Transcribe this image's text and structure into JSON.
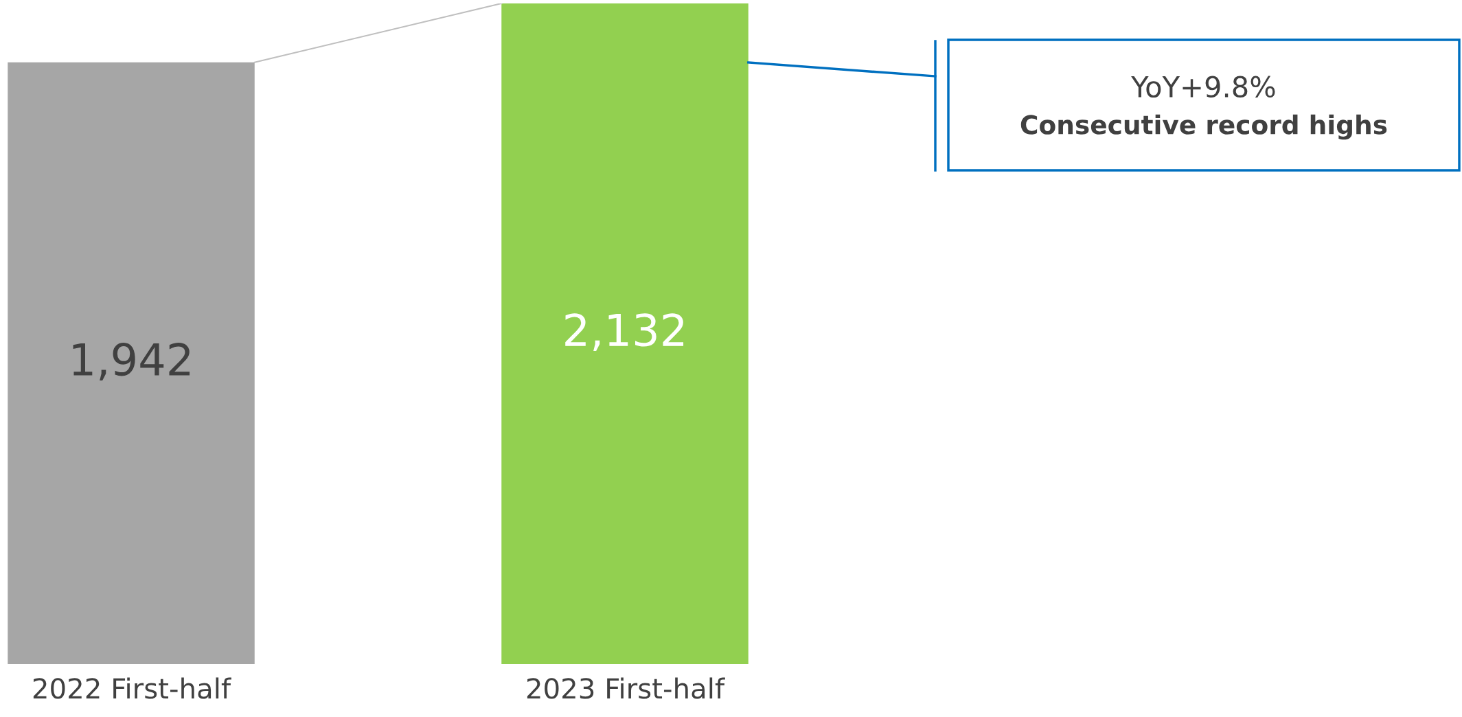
{
  "chart_data": {
    "type": "bar",
    "categories": [
      "2022 First-half",
      "2023 First-half"
    ],
    "values": [
      1942,
      2132
    ],
    "colors": [
      "#a6a6a6",
      "#92d050"
    ],
    "value_labels": [
      "1,942",
      "2,132"
    ],
    "tick_labels": "x",
    "annotations": [
      "YoY+9.8%",
      "Consecutive record highs"
    ]
  }
}
